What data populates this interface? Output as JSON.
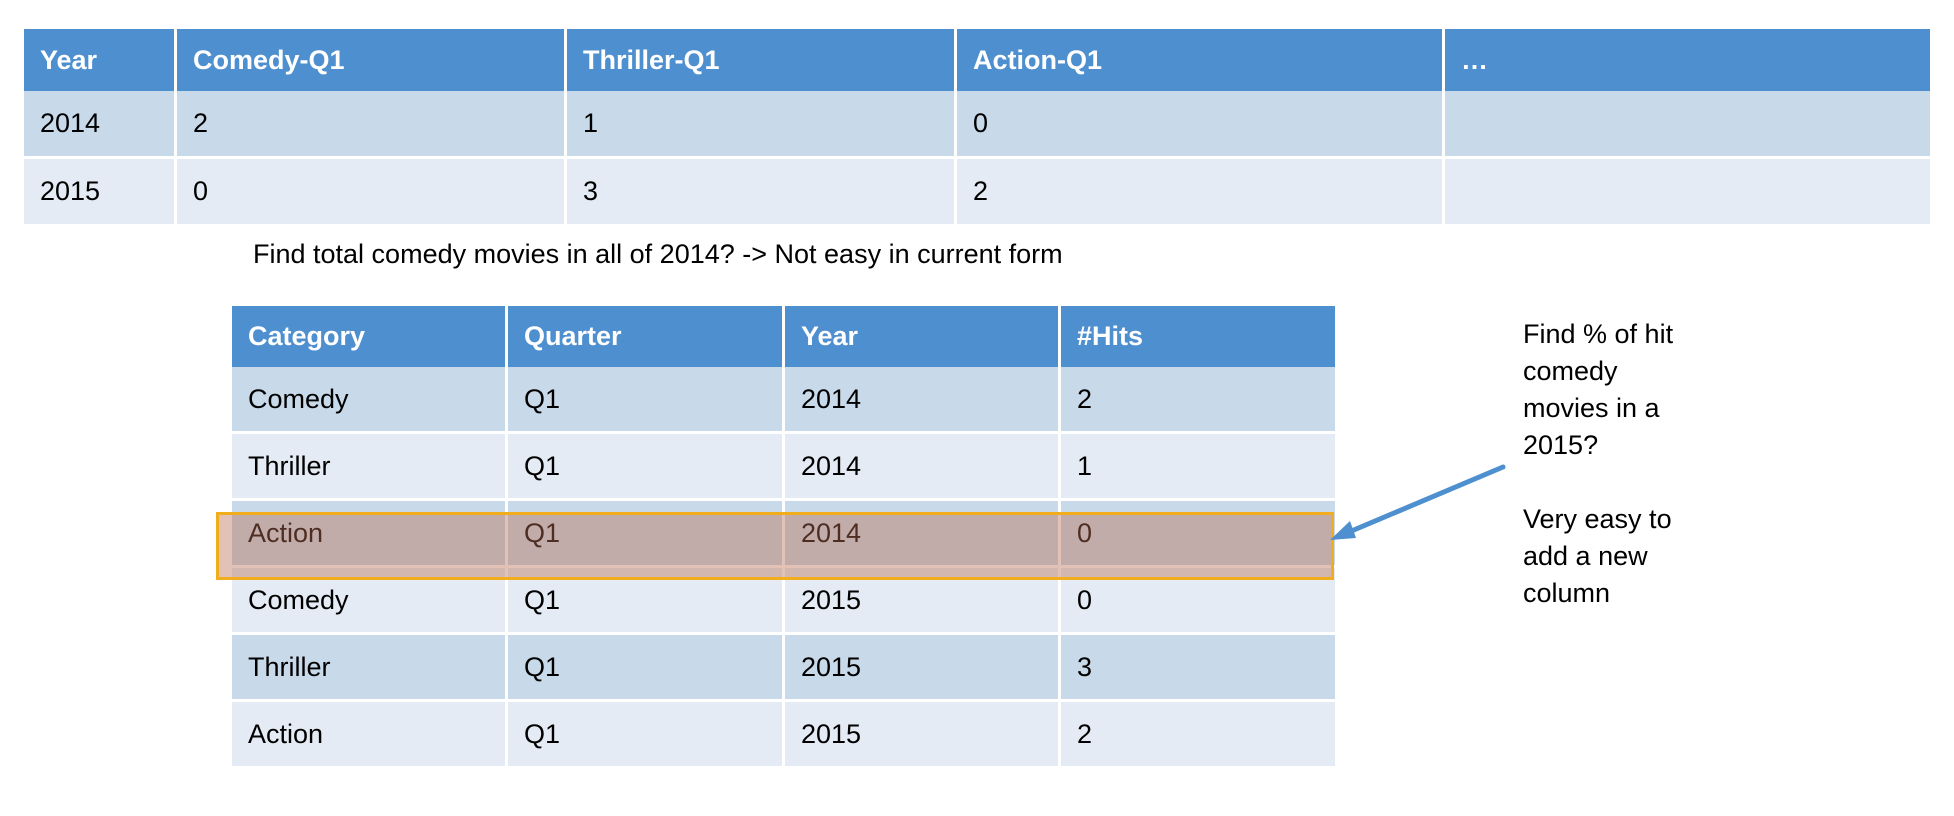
{
  "wide_table": {
    "headers": [
      "Year",
      "Comedy-Q1",
      "Thriller-Q1",
      "Action-Q1",
      "…"
    ],
    "rows": [
      [
        "2014",
        "2",
        "1",
        "0",
        ""
      ],
      [
        "2015",
        "0",
        "3",
        "2",
        ""
      ]
    ]
  },
  "note_top": "Find total comedy movies in  all of 2014? -> Not easy in current form",
  "long_table": {
    "headers": [
      "Category",
      "Quarter",
      "Year",
      "#Hits"
    ],
    "rows": [
      [
        "Comedy",
        "Q1",
        "2014",
        "2"
      ],
      [
        "Thriller",
        "Q1",
        "2014",
        "1"
      ],
      [
        "Action",
        "Q1",
        "2014",
        "0"
      ],
      [
        "Comedy",
        "Q1",
        "2015",
        "0"
      ],
      [
        "Thriller",
        "Q1",
        "2015",
        "3"
      ],
      [
        "Action",
        "Q1",
        "2015",
        "2"
      ]
    ]
  },
  "note_right": "Find % of hit\ncomedy\nmovies in a\n2015?\n\nVery easy to\nadd a new\ncolumn",
  "colors": {
    "header_blue": "#4e8fcf",
    "row_dark": "#c8d9ea",
    "row_light": "#e4ebf4",
    "highlight_border": "#f2ad1e",
    "arrow": "#4e8fcf"
  }
}
